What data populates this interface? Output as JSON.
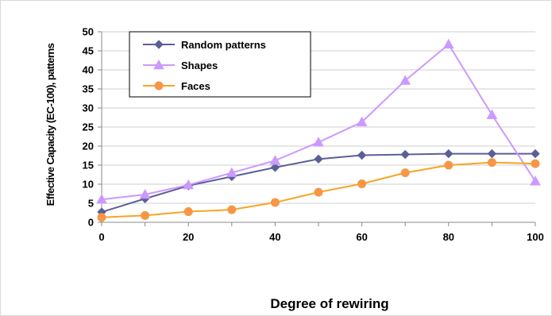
{
  "chart_data": {
    "type": "line",
    "xlabel": "Degree of rewiring",
    "ylabel": "Effective Capacity (EC-100), patterns",
    "x": [
      0,
      10,
      20,
      30,
      40,
      50,
      60,
      70,
      80,
      90,
      100
    ],
    "xticks": [
      "0",
      "20",
      "40",
      "60",
      "80",
      "100"
    ],
    "yticks": [
      "0",
      "5",
      "10",
      "15",
      "20",
      "25",
      "30",
      "35",
      "40",
      "45",
      "50"
    ],
    "xlim": [
      0,
      100
    ],
    "ylim": [
      0,
      50
    ],
    "grid": "horizontal",
    "legend_position": "top-left",
    "series": [
      {
        "name": "Random patterns",
        "color": "#5B5F97",
        "marker": "diamond",
        "values": [
          2.7,
          6.2,
          9.6,
          12.0,
          14.4,
          16.6,
          17.6,
          17.8,
          18.0,
          18.0,
          18.0
        ]
      },
      {
        "name": "Shapes",
        "color": "#CC99FF",
        "marker": "triangle",
        "values": [
          6.0,
          7.3,
          9.8,
          13.0,
          16.2,
          21.0,
          26.3,
          37.2,
          46.7,
          28.2,
          10.8
        ]
      },
      {
        "name": "Faces",
        "color": "#F5A623",
        "marker_color": "#F79646",
        "marker": "circle",
        "values": [
          1.3,
          1.8,
          2.8,
          3.3,
          5.2,
          7.9,
          10.1,
          13.0,
          15.0,
          15.7,
          15.4
        ]
      }
    ]
  }
}
